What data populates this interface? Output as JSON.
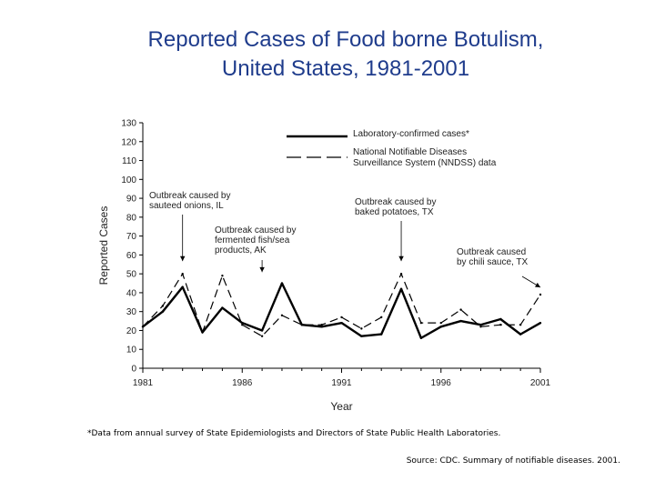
{
  "slide": {
    "title_line1": "Reported Cases of Food borne Botulism,",
    "title_line2": "United States, 1981-2001",
    "footnote": "*Data from annual survey of State Epidemiologists and Directors of State Public Health Laboratories.",
    "source": "Source: CDC. Summary of notifiable diseases. 2001."
  },
  "chart_data": {
    "type": "line",
    "title": "",
    "xlabel": "Year",
    "ylabel": "Reported Cases",
    "x": [
      1981,
      1982,
      1983,
      1984,
      1985,
      1986,
      1987,
      1988,
      1989,
      1990,
      1991,
      1992,
      1993,
      1994,
      1995,
      1996,
      1997,
      1998,
      1999,
      2000,
      2001
    ],
    "xlim": [
      1981,
      2001
    ],
    "ylim": [
      0,
      130
    ],
    "xticks": [
      "1981",
      "1986",
      "1991",
      "1996",
      "2001"
    ],
    "yticks": [
      "0",
      "10",
      "20",
      "30",
      "40",
      "50",
      "60",
      "70",
      "80",
      "90",
      "100",
      "110",
      "120",
      "130"
    ],
    "grid": false,
    "legend_position": "top-right",
    "series": [
      {
        "name": "Laboratory-confirmed cases*",
        "style": "solid",
        "color": "#000000",
        "values": [
          22,
          30,
          43,
          19,
          32,
          24,
          20,
          45,
          23,
          22,
          24,
          17,
          18,
          42,
          16,
          22,
          25,
          23,
          26,
          18,
          24
        ]
      },
      {
        "name": "National Notifiable Diseases Surveillance System (NNDSS) data",
        "style": "dashed",
        "color": "#000000",
        "values": [
          22,
          33,
          50,
          19,
          49,
          23,
          17,
          28,
          23,
          23,
          27,
          21,
          27,
          50,
          24,
          24,
          31,
          22,
          23,
          23,
          39
        ]
      }
    ],
    "annotations": [
      {
        "text": [
          "Outbreak caused by",
          "sauteed onions, IL"
        ],
        "year": 1983,
        "value": 50
      },
      {
        "text": [
          "Outbreak caused by",
          "fermented fish/sea",
          "products, AK"
        ],
        "year": 1987,
        "value": 49
      },
      {
        "text": [
          "Outbreak caused by",
          "baked potatoes, TX"
        ],
        "year": 1994,
        "value": 50
      },
      {
        "text": [
          "Outbreak caused",
          "by chili sauce, TX"
        ],
        "year": 2001,
        "value": 39
      }
    ]
  }
}
